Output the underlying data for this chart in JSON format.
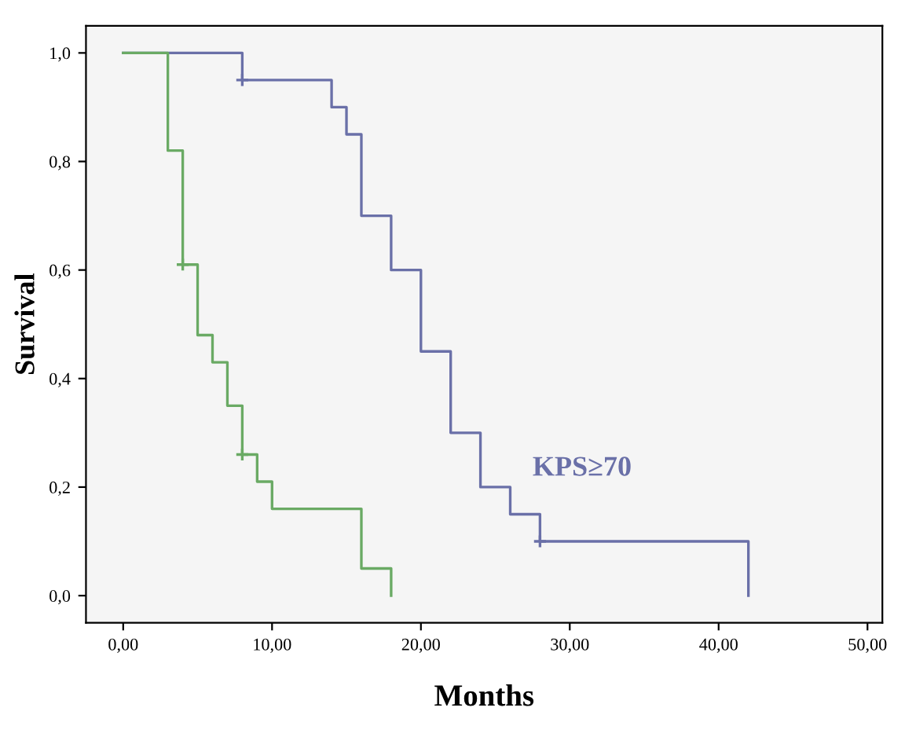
{
  "chart_data": {
    "type": "step",
    "xlabel": "Months",
    "ylabel": "Survival",
    "xlim": [
      -2.5,
      51
    ],
    "ylim": [
      -0.05,
      1.05
    ],
    "xticks": [
      {
        "value": 0,
        "label": "0,00"
      },
      {
        "value": 10,
        "label": "10,00"
      },
      {
        "value": 20,
        "label": "20,00"
      },
      {
        "value": 30,
        "label": "30,00"
      },
      {
        "value": 40,
        "label": "40,00"
      },
      {
        "value": 50,
        "label": "50,00"
      }
    ],
    "yticks": [
      {
        "value": 0,
        "label": "0,0"
      },
      {
        "value": 0.2,
        "label": "0,2"
      },
      {
        "value": 0.4,
        "label": "0,4"
      },
      {
        "value": 0.6,
        "label": "0,6"
      },
      {
        "value": 0.8,
        "label": "0,8"
      },
      {
        "value": 1,
        "label": "1,0"
      }
    ],
    "grid": false,
    "legend": false,
    "marker": "none",
    "line_style": "solid",
    "series": [
      {
        "name": "KPS≥70",
        "color": "#6a70a8",
        "x": [
          0,
          8,
          14,
          15,
          16,
          18,
          20,
          22,
          24,
          26,
          28,
          42
        ],
        "values": [
          1,
          0.95,
          0.9,
          0.85,
          0.7,
          0.6,
          0.45,
          0.3,
          0.2,
          0.15,
          0.1,
          0
        ]
      },
      {
        "color": "#6aaa64",
        "x": [
          0,
          3,
          4,
          5,
          6,
          7,
          8,
          9,
          10,
          16,
          18
        ],
        "values": [
          1,
          0.82,
          0.61,
          0.48,
          0.43,
          0.35,
          0.26,
          0.21,
          0.16,
          0.05,
          0
        ]
      },
      {
        "type": "scatter",
        "marker": "cross",
        "color": "#6a70a8",
        "x": [
          8,
          28
        ],
        "values": [
          0.95,
          0.1
        ]
      },
      {
        "type": "scatter",
        "marker": "cross",
        "color": "#6aaa64",
        "x": [
          4,
          8
        ],
        "values": [
          0.61,
          0.26
        ]
      }
    ]
  }
}
